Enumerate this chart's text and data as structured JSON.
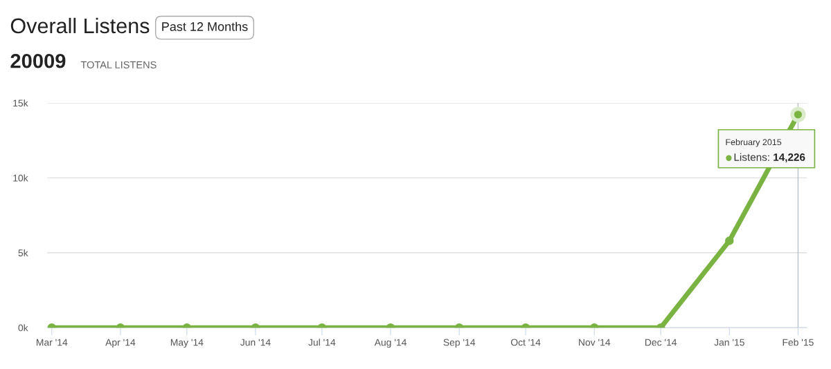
{
  "chart_data": {
    "type": "line",
    "title": "Overall Listens",
    "x": [
      "2014-03",
      "2014-04",
      "2014-05",
      "2014-06",
      "2014-07",
      "2014-08",
      "2014-09",
      "2014-10",
      "2014-11",
      "2014-12",
      "2015-01",
      "2015-02"
    ],
    "series": [
      {
        "color": "#7ab342",
        "values": [
          0,
          0,
          0,
          0,
          0,
          0,
          0,
          0,
          0,
          0,
          5800,
          14226
        ],
        "value_labels": [
          null,
          null,
          null,
          null,
          null,
          null,
          null,
          null,
          null,
          null,
          null,
          "14,226"
        ]
      }
    ],
    "xlim": [
      "2014-02-27",
      "2015-02-05"
    ],
    "xticks": [
      {
        "value": "2014-03",
        "label": "Mar '14"
      },
      {
        "value": "2014-04",
        "label": "Apr '14"
      },
      {
        "value": "2014-05",
        "label": "May '14"
      },
      {
        "value": "2014-06",
        "label": "Jun '14"
      },
      {
        "value": "2014-07",
        "label": "Jul '14"
      },
      {
        "value": "2014-08",
        "label": "Aug '14"
      },
      {
        "value": "2014-09",
        "label": "Sep '14"
      },
      {
        "value": "2014-10",
        "label": "Oct '14"
      },
      {
        "value": "2014-11",
        "label": "Nov '14"
      },
      {
        "value": "2014-12",
        "label": "Dec '14"
      },
      {
        "value": "2015-01",
        "label": "Jan '15"
      },
      {
        "value": "2015-02",
        "label": "Feb '15"
      }
    ],
    "ylim": [
      0,
      15000
    ],
    "yticks": [
      {
        "value": 0,
        "label": "0k"
      },
      {
        "value": 5000,
        "label": "5k"
      },
      {
        "value": 10000,
        "label": "10k"
      },
      {
        "value": 15000,
        "label": "15k"
      }
    ],
    "grid": "y",
    "marker": "circle",
    "line_style": "solid",
    "legend": false,
    "ref_lines": [
      {
        "axis": "x",
        "value": "2015-02",
        "color": "#b8c0c8"
      }
    ],
    "annotations": [
      "Past 12 Months",
      "20009",
      "TOTAL LISTENS",
      "February 2015",
      "Listens:"
    ]
  }
}
